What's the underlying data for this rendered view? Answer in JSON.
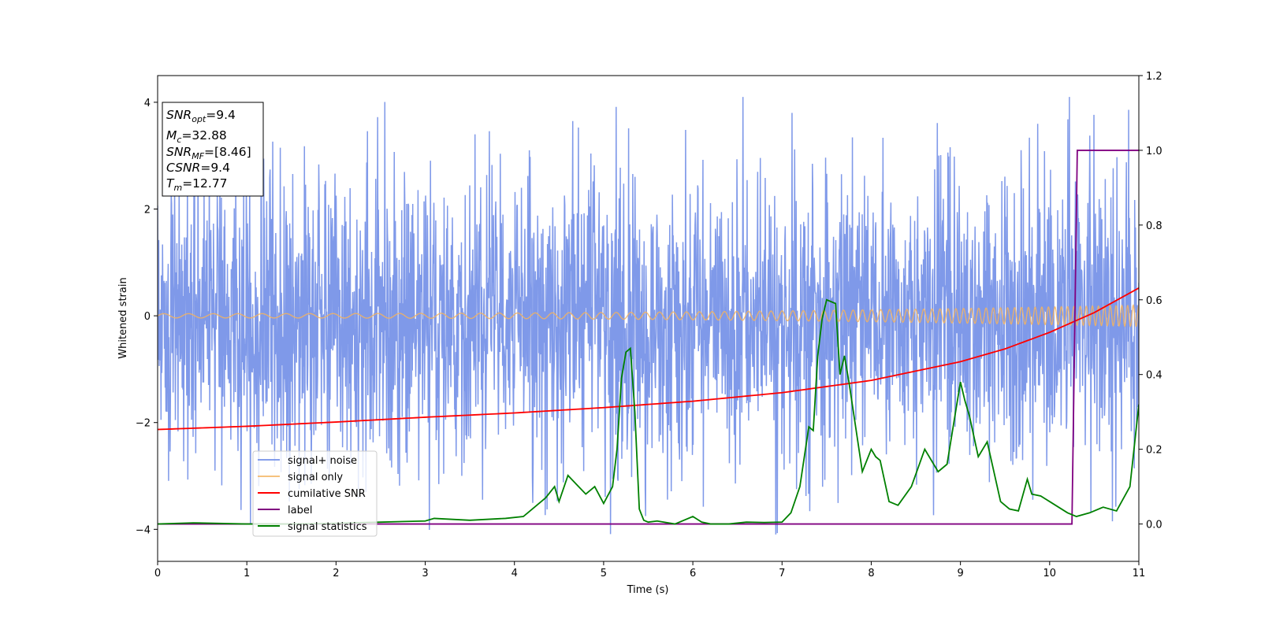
{
  "chart_data": {
    "type": "line",
    "xlabel": "Time (s)",
    "ylabel": "Whitened strain",
    "xlim": [
      0,
      11
    ],
    "ylim": [
      -4.6,
      4.5
    ],
    "y2lim": [
      -0.1,
      1.2
    ],
    "x_ticks": [
      "0",
      "1",
      "2",
      "3",
      "4",
      "5",
      "6",
      "7",
      "8",
      "9",
      "10",
      "11"
    ],
    "y_ticks": [
      "−4",
      "−2",
      "0",
      "2",
      "4"
    ],
    "y2_ticks": [
      "0.0",
      "0.2",
      "0.4",
      "0.6",
      "0.8",
      "1.0",
      "1.2"
    ],
    "legend_position": "lower-left",
    "grid": false,
    "info_box": [
      {
        "base": "SNR",
        "sub": "opt",
        "value": "=9.4"
      },
      {
        "base": "M",
        "sub": "c",
        "value": "=32.88"
      },
      {
        "base": "SNR",
        "sub": "MF",
        "value": "=[8.46]"
      },
      {
        "base": "CSNR",
        "sub": "",
        "value": "=9.4"
      },
      {
        "base": "T",
        "sub": "m",
        "value": "=12.77"
      }
    ],
    "series": [
      {
        "name": "signal+ noise",
        "axis": "left",
        "color": "#7893e8",
        "kind": "noise",
        "typical_range": [
          -2.3,
          2.3
        ],
        "extreme_range": [
          -4.15,
          4.1
        ]
      },
      {
        "name": "signal only",
        "axis": "left",
        "color": "#f4b35e",
        "kind": "chirp",
        "amplitude_start": 0.04,
        "amplitude_end": 0.2,
        "frequency_start_hz": 3.6,
        "frequency_end_hz": 16
      },
      {
        "name": "cumilative SNR",
        "axis": "left",
        "color": "#ff0000",
        "kind": "line",
        "x": [
          0,
          1,
          2,
          3,
          4,
          5,
          6,
          7,
          8,
          9,
          9.5,
          10,
          10.5,
          11
        ],
        "y": [
          -2.13,
          -2.07,
          -1.99,
          -1.9,
          -1.82,
          -1.72,
          -1.6,
          -1.44,
          -1.21,
          -0.86,
          -0.62,
          -0.31,
          0.06,
          0.52
        ]
      },
      {
        "name": "label",
        "axis": "right",
        "color": "#800080",
        "kind": "line",
        "x": [
          0,
          10.25,
          10.31,
          11
        ],
        "y": [
          0,
          0,
          1,
          1
        ]
      },
      {
        "name": "signal statistics",
        "axis": "right",
        "color": "#008000",
        "kind": "line",
        "x": [
          0,
          0.4,
          1,
          1.5,
          2,
          2.5,
          3,
          3.1,
          3.5,
          3.9,
          4.1,
          4.2,
          4.35,
          4.45,
          4.5,
          4.6,
          4.7,
          4.8,
          4.9,
          5.0,
          5.1,
          5.15,
          5.2,
          5.25,
          5.3,
          5.35,
          5.4,
          5.45,
          5.5,
          5.6,
          5.8,
          6.0,
          6.1,
          6.2,
          6.4,
          6.6,
          6.8,
          7.0,
          7.1,
          7.2,
          7.3,
          7.35,
          7.4,
          7.45,
          7.5,
          7.6,
          7.65,
          7.7,
          7.75,
          7.8,
          7.9,
          8.0,
          8.05,
          8.1,
          8.2,
          8.3,
          8.45,
          8.6,
          8.75,
          8.85,
          9.0,
          9.05,
          9.1,
          9.2,
          9.3,
          9.45,
          9.55,
          9.65,
          9.75,
          9.8,
          9.9,
          10.0,
          10.2,
          10.3,
          10.45,
          10.6,
          10.75,
          10.9,
          11.0
        ],
        "y": [
          0.0,
          0.003,
          0.0,
          0.0,
          0.002,
          0.005,
          0.008,
          0.015,
          0.01,
          0.015,
          0.02,
          0.04,
          0.07,
          0.1,
          0.06,
          0.13,
          0.105,
          0.08,
          0.1,
          0.055,
          0.1,
          0.2,
          0.39,
          0.46,
          0.47,
          0.3,
          0.04,
          0.01,
          0.005,
          0.008,
          0.0,
          0.02,
          0.005,
          0.0,
          0.0,
          0.005,
          0.004,
          0.005,
          0.03,
          0.1,
          0.26,
          0.25,
          0.45,
          0.55,
          0.6,
          0.59,
          0.4,
          0.45,
          0.38,
          0.3,
          0.14,
          0.2,
          0.18,
          0.17,
          0.06,
          0.05,
          0.1,
          0.2,
          0.14,
          0.16,
          0.38,
          0.33,
          0.29,
          0.18,
          0.22,
          0.06,
          0.04,
          0.035,
          0.12,
          0.08,
          0.075,
          0.06,
          0.03,
          0.02,
          0.03,
          0.045,
          0.035,
          0.1,
          0.32
        ]
      }
    ]
  }
}
